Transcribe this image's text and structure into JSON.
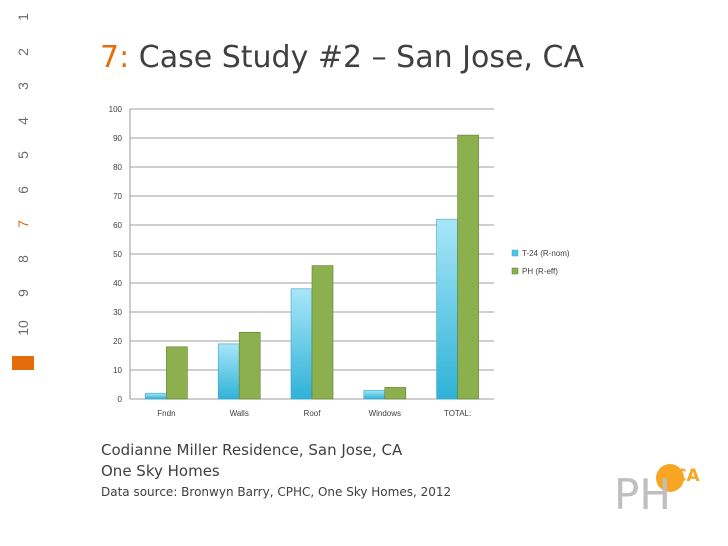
{
  "slide": {
    "number": "7:",
    "title": "Case Study #2 – San Jose, CA",
    "nav_numbers": [
      "1",
      "2",
      "3",
      "4",
      "5",
      "6",
      "7",
      "8",
      "9",
      "10"
    ],
    "active_nav": "7",
    "caption_line1": "Codianne Miller Residence, San Jose, CA",
    "caption_line2": "One Sky Homes",
    "caption_line3": "Data source: Bronwyn Barry, CPHC, One Sky Homes, 2012",
    "logo_main": "PH",
    "logo_sup": "CA"
  },
  "colors": {
    "accent": "#e46c0a",
    "series1": "#4fc3e6",
    "series2": "#8db04f",
    "text": "#404040"
  },
  "chart_data": {
    "type": "bar",
    "title": "",
    "xlabel": "",
    "ylabel": "",
    "categories": [
      "Fndn",
      "Walls",
      "Roof",
      "Windows",
      "TOTAL:"
    ],
    "series": [
      {
        "name": "T-24 (R-nom)",
        "values": [
          2,
          19,
          38,
          3,
          62
        ]
      },
      {
        "name": "PH (R-eff)",
        "values": [
          18,
          23,
          46,
          4,
          91
        ]
      }
    ],
    "ylim": [
      0,
      100
    ],
    "yticks": [
      "0",
      "10",
      "20",
      "30",
      "40",
      "50",
      "60",
      "70",
      "80",
      "90",
      "100"
    ],
    "grid": true,
    "legend": "right"
  }
}
